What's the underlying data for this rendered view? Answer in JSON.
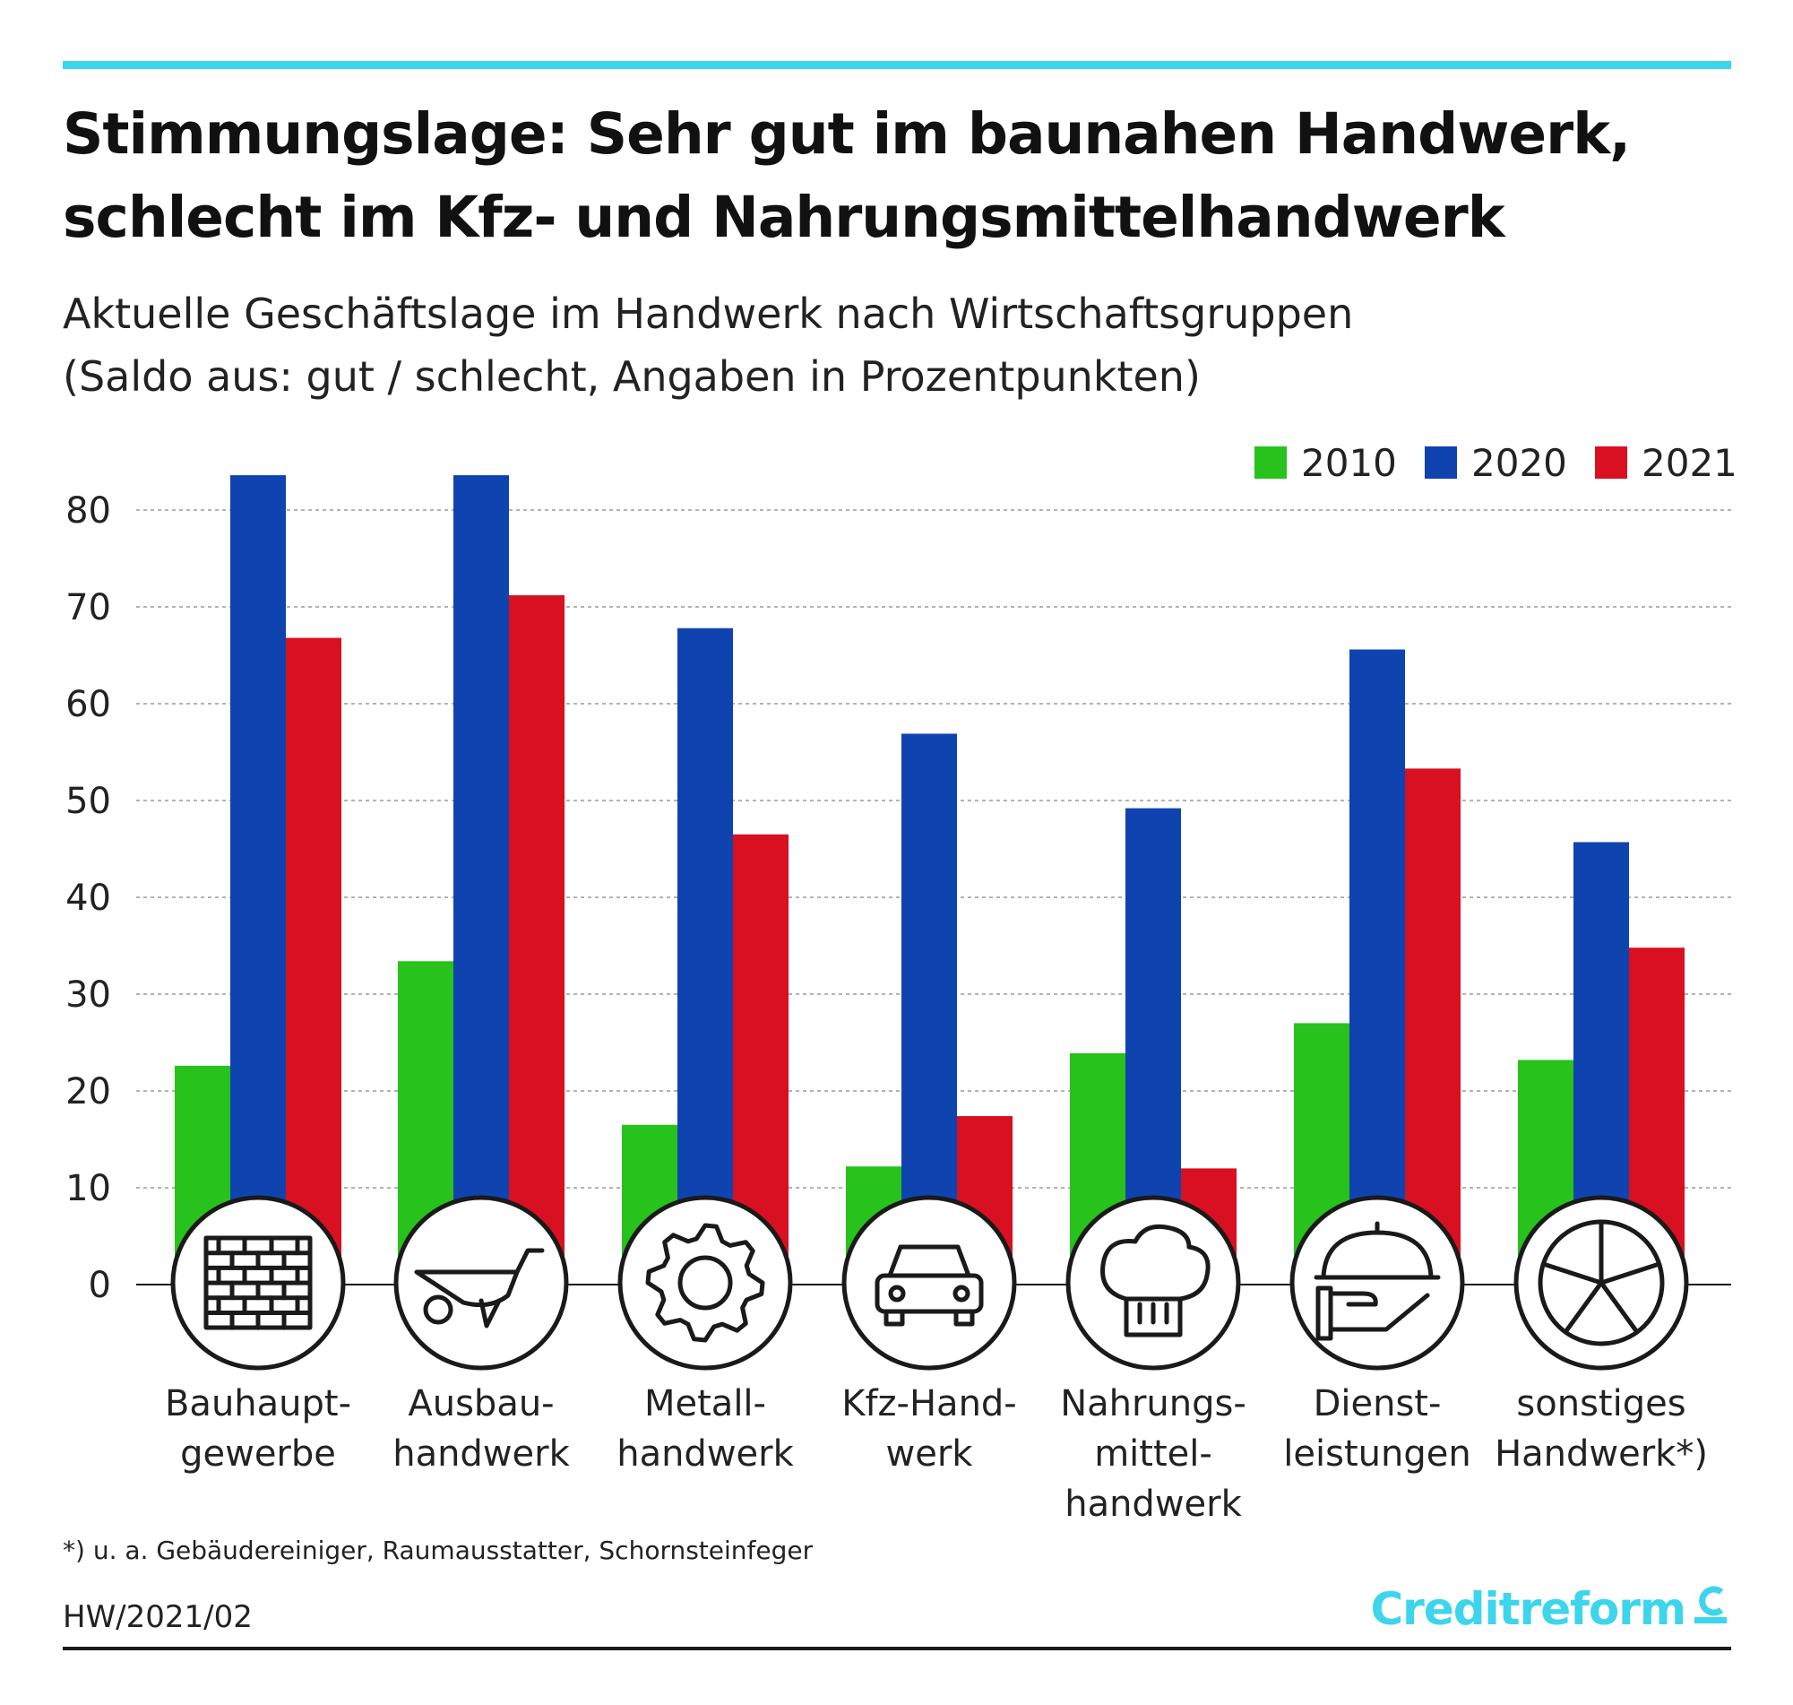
{
  "title_lines": [
    "Stimmungslage: Sehr gut im baunahen Handwerk,",
    "schlecht im Kfz- und Nahrungsmittelhandwerk"
  ],
  "subtitle_lines": [
    "Aktuelle Geschäftslage im Handwerk nach Wirtschaftsgruppen",
    "(Saldo aus: gut / schlecht, Angaben in Prozentpunkten)"
  ],
  "footnote": "*) u. a. Gebäudereiniger, Raumausstatter, Schornsteinfeger",
  "code": "HW/2021/02",
  "brand": "Creditreform",
  "chart_data": {
    "type": "bar",
    "title": "Aktuelle Geschäftslage im Handwerk nach Wirtschaftsgruppen",
    "ylabel": "Saldo aus: gut / schlecht, Angaben in Prozentpunkten",
    "ylim": [
      0,
      80
    ],
    "yticks": [
      "0",
      "10",
      "20",
      "30",
      "40",
      "50",
      "60",
      "70",
      "80"
    ],
    "grid": true,
    "legend_position": "top-right",
    "categories": [
      "Bauhaupt-\ngewerbe",
      "Ausbau-\nhandwerk",
      "Metall-\nhandwerk",
      "Kfz-Hand-\nwerk",
      "Nahrungs-\nmittel-\nhandwerk",
      "Dienst-\nleistungen",
      "sonstiges\nHandwerk*)"
    ],
    "icons": [
      "brick-wall-icon",
      "wheelbarrow-icon",
      "gear-icon",
      "car-icon",
      "chef-hat-icon",
      "serving-cloche-icon",
      "pie-segments-icon"
    ],
    "series": [
      {
        "name": "2010",
        "color": "#27c21b",
        "values": [
          22.6,
          33.4,
          16.5,
          12.2,
          23.9,
          27.0,
          23.2
        ]
      },
      {
        "name": "2020",
        "color": "#0f43b0",
        "values": [
          83.6,
          83.6,
          67.8,
          56.9,
          49.2,
          65.6,
          45.7
        ]
      },
      {
        "name": "2021",
        "color": "#d9101f",
        "values": [
          66.8,
          71.2,
          46.5,
          17.4,
          12.0,
          53.3,
          34.8
        ]
      }
    ]
  }
}
